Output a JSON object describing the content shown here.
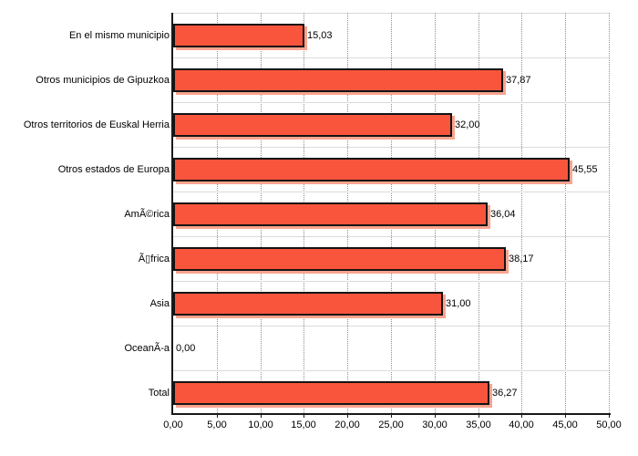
{
  "chart_data": {
    "type": "bar",
    "orientation": "horizontal",
    "title": "",
    "xlabel": "",
    "ylabel": "",
    "categories": [
      "En el mismo municipio",
      "Otros municipios de Gipuzkoa",
      "Otros territorios de Euskal Herria",
      "Otros estados de Europa",
      "AmÃ©rica",
      "Ã▯frica",
      "Asia",
      "OceanÃ-a",
      "Total"
    ],
    "values": [
      15.03,
      37.87,
      32.0,
      45.55,
      36.04,
      38.17,
      31.0,
      0.0,
      36.27
    ],
    "value_labels": [
      "15,03",
      "37,87",
      "32,00",
      "45,55",
      "36,04",
      "38,17",
      "31,00",
      "0,00",
      "36,27"
    ],
    "x_tick_labels": [
      "0,00",
      "5,00",
      "10,00",
      "15,00",
      "20,00",
      "25,00",
      "30,00",
      "35,00",
      "40,00",
      "45,00",
      "50,00"
    ],
    "xlim": [
      0,
      50
    ],
    "x_tick_step": 5,
    "grid": "vertical-dotted",
    "legend": "none",
    "colors": {
      "bar_fill": "#F8553C",
      "bar_border": "#141414",
      "bar_shadow": "#F9A48F",
      "grid_dot": "#8f8f8f",
      "row_separator": "#DBDBDB",
      "plot_top_border": "#D9D9D9",
      "axis": "#1A1A1A",
      "text": "#000000",
      "background": "#FFFFFF"
    }
  }
}
